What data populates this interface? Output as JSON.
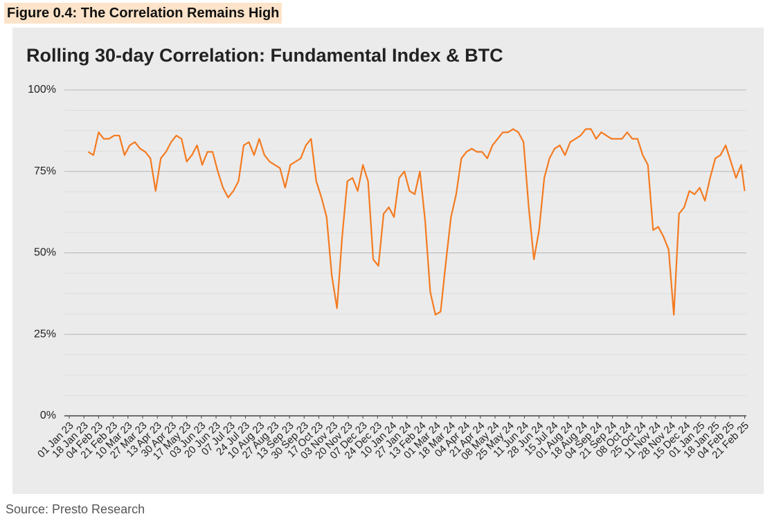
{
  "figure_label": "Figure 0.4: The Correlation Remains High",
  "source": "Source: Presto Research",
  "chart_data": {
    "type": "line",
    "title": "Rolling 30-day Correlation: Fundamental Index & BTC",
    "color": "#f47a20",
    "grid": true,
    "xlim": [
      "01 Jan 23",
      "23 Feb 25"
    ],
    "xticks": [
      "01 Jan 23",
      "18 Jan 23",
      "04 Feb 23",
      "21 Feb 23",
      "10 Mar 23",
      "27 Mar 23",
      "13 Apr 23",
      "30 Apr 23",
      "17 May 23",
      "03 Jun 23",
      "20 Jun 23",
      "07 Jul 23",
      "24 Jul 23",
      "10 Aug 23",
      "27 Aug 23",
      "13 Sep 23",
      "30 Sep 23",
      "17 Oct 23",
      "03 Nov 23",
      "20 Nov 23",
      "07 Dec 23",
      "24 Dec 23",
      "10 Jan 24",
      "27 Jan 24",
      "13 Feb 24",
      "01 Mar 24",
      "18 Mar 24",
      "04 Apr 24",
      "21 Apr 24",
      "08 May 24",
      "25 May 24",
      "11 Jun 24",
      "28 Jun 24",
      "15 Jul 24",
      "01 Aug 24",
      "18 Aug 24",
      "04 Sep 24",
      "21 Sep 24",
      "08 Oct 24",
      "25 Oct 24",
      "11 Nov 24",
      "28 Nov 24",
      "15 Dec 24",
      "01 Jan 25",
      "18 Jan 25",
      "04 Feb 25",
      "21 Feb 25"
    ],
    "ylim": [
      0,
      100
    ],
    "yticks": [
      {
        "value": 0,
        "label": "0%"
      },
      {
        "value": 25,
        "label": "25%"
      },
      {
        "value": 50,
        "label": "50%"
      },
      {
        "value": 75,
        "label": "75%"
      },
      {
        "value": 100,
        "label": "100%"
      }
    ],
    "minor_yticks": [
      6.25,
      12.5,
      18.75,
      31.25,
      37.5,
      43.75,
      56.25,
      62.5,
      68.75,
      81.25,
      87.5,
      93.75
    ],
    "x": [
      "23 Jan 23",
      "29 Jan 23",
      "04 Feb 23",
      "10 Feb 23",
      "16 Feb 23",
      "22 Feb 23",
      "28 Feb 23",
      "06 Mar 23",
      "12 Mar 23",
      "18 Mar 23",
      "24 Mar 23",
      "30 Mar 23",
      "05 Apr 23",
      "11 Apr 23",
      "17 Apr 23",
      "23 Apr 23",
      "29 Apr 23",
      "05 May 23",
      "11 May 23",
      "17 May 23",
      "23 May 23",
      "29 May 23",
      "04 Jun 23",
      "10 Jun 23",
      "16 Jun 23",
      "22 Jun 23",
      "28 Jun 23",
      "04 Jul 23",
      "10 Jul 23",
      "16 Jul 23",
      "22 Jul 23",
      "28 Jul 23",
      "03 Aug 23",
      "09 Aug 23",
      "15 Aug 23",
      "21 Aug 23",
      "27 Aug 23",
      "02 Sep 23",
      "08 Sep 23",
      "14 Sep 23",
      "20 Sep 23",
      "26 Sep 23",
      "02 Oct 23",
      "08 Oct 23",
      "14 Oct 23",
      "20 Oct 23",
      "26 Oct 23",
      "01 Nov 23",
      "07 Nov 23",
      "13 Nov 23",
      "19 Nov 23",
      "25 Nov 23",
      "01 Dec 23",
      "07 Dec 23",
      "13 Dec 23",
      "19 Dec 23",
      "25 Dec 23",
      "31 Dec 23",
      "06 Jan 24",
      "12 Jan 24",
      "18 Jan 24",
      "24 Jan 24",
      "30 Jan 24",
      "05 Feb 24",
      "11 Feb 24",
      "17 Feb 24",
      "23 Feb 24",
      "29 Feb 24",
      "06 Mar 24",
      "12 Mar 24",
      "18 Mar 24",
      "24 Mar 24",
      "30 Mar 24",
      "05 Apr 24",
      "11 Apr 24",
      "17 Apr 24",
      "23 Apr 24",
      "29 Apr 24",
      "05 May 24",
      "11 May 24",
      "17 May 24",
      "23 May 24",
      "29 May 24",
      "04 Jun 24",
      "10 Jun 24",
      "16 Jun 24",
      "22 Jun 24",
      "28 Jun 24",
      "04 Jul 24",
      "10 Jul 24",
      "16 Jul 24",
      "22 Jul 24",
      "28 Jul 24",
      "03 Aug 24",
      "09 Aug 24",
      "15 Aug 24",
      "21 Aug 24",
      "27 Aug 24",
      "02 Sep 24",
      "08 Sep 24",
      "14 Sep 24",
      "20 Sep 24",
      "26 Sep 24",
      "02 Oct 24",
      "08 Oct 24",
      "14 Oct 24",
      "20 Oct 24",
      "26 Oct 24",
      "01 Nov 24",
      "07 Nov 24",
      "13 Nov 24",
      "19 Nov 24",
      "25 Nov 24",
      "01 Dec 24",
      "07 Dec 24",
      "13 Dec 24",
      "19 Dec 24",
      "25 Dec 24",
      "31 Dec 24",
      "06 Jan 25",
      "12 Jan 25",
      "18 Jan 25",
      "24 Jan 25",
      "30 Jan 25",
      "05 Feb 25",
      "11 Feb 25",
      "17 Feb 25",
      "21 Feb 25"
    ],
    "values": [
      81,
      80,
      87,
      85,
      85,
      86,
      86,
      80,
      83,
      84,
      82,
      81,
      79,
      69,
      79,
      81,
      84,
      86,
      85,
      78,
      80,
      83,
      77,
      81,
      81,
      75,
      70,
      67,
      69,
      72,
      83,
      84,
      80,
      85,
      80,
      78,
      77,
      76,
      70,
      77,
      78,
      79,
      83,
      85,
      72,
      67,
      61,
      43,
      33,
      55,
      72,
      73,
      69,
      77,
      72,
      48,
      46,
      62,
      64,
      61,
      73,
      75,
      69,
      68,
      75,
      60,
      38,
      31,
      32,
      47,
      61,
      68,
      79,
      81,
      82,
      81,
      81,
      79,
      83,
      85,
      87,
      87,
      88,
      87,
      84,
      64,
      48,
      57,
      73,
      79,
      82,
      83,
      80,
      84,
      85,
      86,
      88,
      88,
      85,
      87,
      86,
      85,
      85,
      85,
      87,
      85,
      85,
      80,
      77,
      57,
      58,
      55,
      51,
      31,
      62,
      64,
      69,
      68,
      70,
      66,
      73,
      79,
      80,
      83,
      78,
      73,
      77,
      69
    ]
  }
}
